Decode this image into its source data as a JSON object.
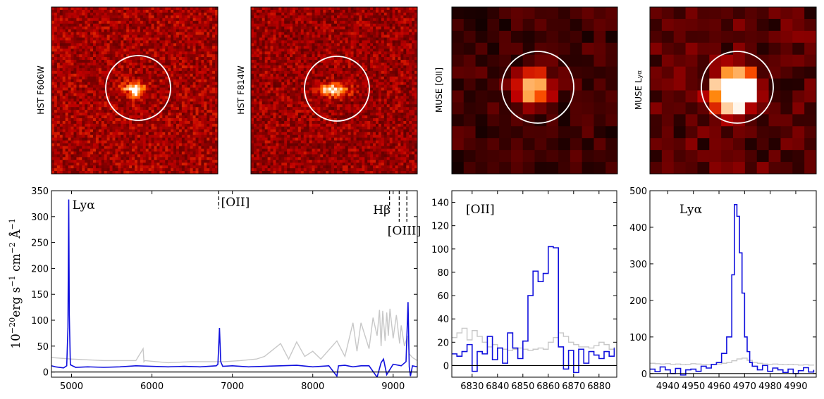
{
  "chart_data": [
    {
      "type": "image",
      "panel": "image-hst-f606w",
      "label": "HST F606W",
      "colormap": "gist_heat",
      "aperture": "circle",
      "source_shape": "v-shaped compact source",
      "peak_level": 0.75
    },
    {
      "type": "image",
      "panel": "image-hst-f814w",
      "label": "HST F814W",
      "colormap": "gist_heat",
      "aperture": "circle",
      "source_shape": "elongated compact source",
      "peak_level": 0.6
    },
    {
      "type": "image",
      "panel": "image-muse-oii",
      "label": "MUSE [OII]",
      "colormap": "gist_heat",
      "aperture": "circle",
      "pixels": 14,
      "peak_level": 0.85
    },
    {
      "type": "image",
      "panel": "image-muse-lya",
      "label_main": "MUSE L",
      "label_sub": "yα",
      "colormap": "gist_heat",
      "aperture": "circle",
      "pixels": 14,
      "peak_level": 1.0
    },
    {
      "type": "line",
      "panel": "spectrum-full",
      "step": true,
      "xlim": [
        4750,
        9300
      ],
      "ylim": [
        -10,
        350
      ],
      "xticks": [
        "5000",
        "6000",
        "7000",
        "8000",
        "9000"
      ],
      "xtick_values": [
        5000,
        6000,
        7000,
        8000,
        9000
      ],
      "yticks": [
        "0",
        "50",
        "100",
        "150",
        "200",
        "250",
        "300",
        "350"
      ],
      "ytick_values": [
        0,
        50,
        100,
        150,
        200,
        250,
        300,
        350
      ],
      "ylabel_main": "10",
      "ylabel_exp": "−20",
      "ylabel_rest": "erg s",
      "ylabel_exp2": "−1",
      "ylabel_rest2": " cm",
      "ylabel_exp3": "−2",
      "ylabel_rest3": " Å",
      "ylabel_exp4": "−1",
      "zero_line": 0,
      "annotations": [
        {
          "text": "Lyα",
          "x": 5010,
          "y": 315
        },
        {
          "text": "[OII]",
          "x": 6860,
          "y": 320
        },
        {
          "text": "Hβ",
          "x": 8750,
          "y": 305
        },
        {
          "text": "[OIII]",
          "x": 8930,
          "y": 265
        }
      ],
      "line_markers": [
        {
          "name": "oii",
          "x": 6830,
          "y_from": 350,
          "y_to": 315
        },
        {
          "name": "hbeta",
          "x": 8955,
          "y_from": 350,
          "y_to": 315
        },
        {
          "name": "oiii-a",
          "x": 9075,
          "y_from": 350,
          "y_to": 290
        },
        {
          "name": "oiii-b",
          "x": 9170,
          "y_from": 350,
          "y_to": 290
        }
      ],
      "series": [
        {
          "name": "noise",
          "color": "#c8c8c8",
          "x": [
            4750,
            5000,
            5400,
            5800,
            5890,
            5900,
            5910,
            6200,
            6500,
            6700,
            6900,
            7100,
            7300,
            7400,
            7600,
            7700,
            7800,
            7900,
            8000,
            8100,
            8300,
            8350,
            8400,
            8500,
            8550,
            8600,
            8700,
            8750,
            8800,
            8830,
            8850,
            8870,
            8900,
            8920,
            8940,
            8960,
            9000,
            9040,
            9080,
            9100,
            9140,
            9180,
            9200,
            9240,
            9300
          ],
          "y": [
            28,
            25,
            22,
            22,
            45,
            20,
            22,
            18,
            20,
            20,
            20,
            22,
            25,
            30,
            55,
            25,
            58,
            30,
            40,
            25,
            60,
            45,
            30,
            95,
            40,
            95,
            45,
            105,
            70,
            120,
            50,
            118,
            60,
            115,
            70,
            122,
            65,
            110,
            55,
            90,
            50,
            70,
            35,
            28,
            22
          ]
        },
        {
          "name": "flux",
          "color": "#1010dd",
          "x": [
            4750,
            4800,
            4900,
            4940,
            4955,
            4965,
            4972,
            4985,
            5050,
            5200,
            5400,
            5600,
            5800,
            6000,
            6200,
            6400,
            6600,
            6800,
            6820,
            6840,
            6855,
            6880,
            7000,
            7200,
            7400,
            7600,
            7800,
            8000,
            8200,
            8300,
            8320,
            8400,
            8500,
            8600,
            8700,
            8800,
            8850,
            8880,
            8920,
            9000,
            9100,
            9160,
            9185,
            9200,
            9215,
            9240,
            9300
          ],
          "y": [
            12,
            10,
            8,
            12,
            85,
            333,
            110,
            14,
            9,
            10,
            9,
            10,
            12,
            11,
            10,
            11,
            10,
            12,
            15,
            85,
            20,
            11,
            12,
            10,
            11,
            12,
            13,
            10,
            12,
            -8,
            12,
            13,
            10,
            12,
            12,
            -10,
            18,
            25,
            -5,
            15,
            12,
            20,
            135,
            10,
            -8,
            12,
            10
          ]
        }
      ]
    },
    {
      "type": "line",
      "panel": "spectrum-oii",
      "step": true,
      "title": "[OII]",
      "xlim": [
        6822,
        6887
      ],
      "ylim": [
        -10,
        150
      ],
      "xticks": [
        "6830",
        "6840",
        "6850",
        "6860",
        "6870",
        "6880"
      ],
      "xtick_values": [
        6830,
        6840,
        6850,
        6860,
        6870,
        6880
      ],
      "yticks": [
        "0",
        "20",
        "40",
        "60",
        "80",
        "100",
        "120",
        "140"
      ],
      "ytick_values": [
        0,
        20,
        40,
        60,
        80,
        100,
        120,
        140
      ],
      "zero_line": 0,
      "series": [
        {
          "name": "noise",
          "color": "#c8c8c8",
          "x": [
            6822,
            6824,
            6826,
            6828,
            6830,
            6832,
            6834,
            6836,
            6838,
            6840,
            6842,
            6844,
            6846,
            6848,
            6850,
            6852,
            6854,
            6856,
            6858,
            6860,
            6862,
            6864,
            6866,
            6868,
            6870,
            6872,
            6874,
            6876,
            6878,
            6880,
            6882,
            6884,
            6886
          ],
          "y": [
            24,
            28,
            32,
            22,
            30,
            25,
            20,
            16,
            18,
            15,
            14,
            13,
            14,
            15,
            14,
            13,
            14,
            15,
            14,
            20,
            24,
            28,
            25,
            20,
            18,
            16,
            16,
            15,
            17,
            20,
            18,
            14,
            16
          ]
        },
        {
          "name": "flux",
          "color": "#1010dd",
          "x": [
            6822,
            6824,
            6826,
            6828,
            6830,
            6832,
            6834,
            6836,
            6838,
            6840,
            6842,
            6844,
            6846,
            6848,
            6850,
            6852,
            6854,
            6856,
            6858,
            6860,
            6862,
            6864,
            6866,
            6868,
            6870,
            6872,
            6874,
            6876,
            6878,
            6880,
            6882,
            6884,
            6886
          ],
          "y": [
            10,
            8,
            12,
            18,
            -5,
            12,
            10,
            25,
            5,
            15,
            2,
            28,
            15,
            6,
            21,
            60,
            81,
            72,
            79,
            102,
            101,
            16,
            -3,
            13,
            -6,
            14,
            2,
            12,
            9,
            6,
            12,
            8,
            15
          ]
        }
      ]
    },
    {
      "type": "line",
      "panel": "spectrum-lya",
      "step": true,
      "title": "Lyα",
      "xlim": [
        4933,
        4998
      ],
      "ylim": [
        -10,
        500
      ],
      "xticks": [
        "4940",
        "4950",
        "4960",
        "4970",
        "4980",
        "4990"
      ],
      "xtick_values": [
        4940,
        4950,
        4960,
        4970,
        4980,
        4990
      ],
      "yticks": [
        "0",
        "100",
        "200",
        "300",
        "400",
        "500"
      ],
      "ytick_values": [
        0,
        100,
        200,
        300,
        400,
        500
      ],
      "zero_line": 0,
      "series": [
        {
          "name": "noise",
          "color": "#c8c8c8",
          "x": [
            4933,
            4935,
            4937,
            4939,
            4941,
            4943,
            4945,
            4947,
            4949,
            4951,
            4953,
            4955,
            4957,
            4959,
            4961,
            4963,
            4965,
            4967,
            4969,
            4971,
            4973,
            4975,
            4977,
            4979,
            4981,
            4983,
            4985,
            4987,
            4989,
            4991,
            4993,
            4995,
            4997
          ],
          "y": [
            28,
            27,
            26,
            27,
            25,
            26,
            24,
            25,
            27,
            26,
            25,
            24,
            25,
            26,
            28,
            30,
            35,
            40,
            42,
            36,
            30,
            28,
            26,
            25,
            26,
            25,
            24,
            25,
            24,
            23,
            24,
            23,
            22
          ]
        },
        {
          "name": "flux",
          "color": "#1010dd",
          "x": [
            4933,
            4935,
            4937,
            4939,
            4941,
            4943,
            4945,
            4947,
            4949,
            4951,
            4953,
            4955,
            4957,
            4959,
            4961,
            4963,
            4965,
            4966,
            4967,
            4968,
            4969,
            4970,
            4971,
            4972,
            4973,
            4975,
            4977,
            4979,
            4981,
            4983,
            4985,
            4987,
            4989,
            4991,
            4993,
            4995,
            4997
          ],
          "y": [
            12,
            5,
            18,
            10,
            0,
            14,
            -4,
            10,
            12,
            6,
            20,
            15,
            25,
            30,
            55,
            100,
            270,
            462,
            430,
            330,
            220,
            100,
            60,
            30,
            20,
            10,
            22,
            6,
            15,
            10,
            3,
            12,
            0,
            8,
            16,
            4,
            10
          ]
        }
      ]
    }
  ]
}
